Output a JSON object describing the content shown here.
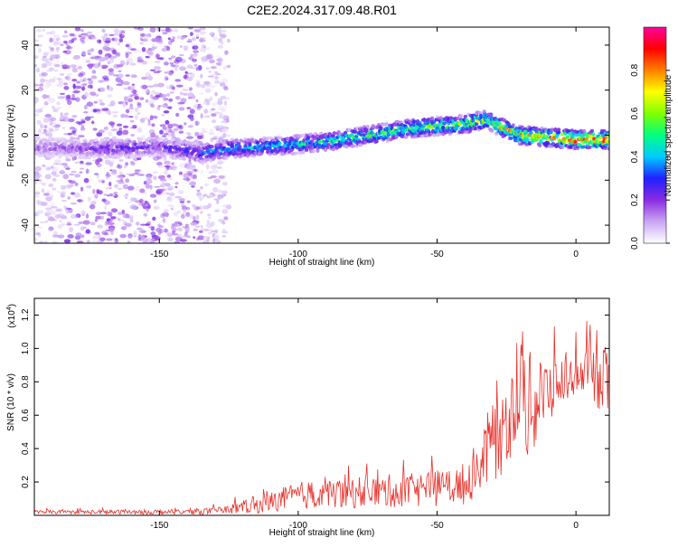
{
  "figure_title": "C2E2.2024.317.09.48.R01",
  "chart_data": [
    {
      "type": "heatmap",
      "xlabel": "Height of straight line (km)",
      "ylabel": "Frequency (Hz)",
      "xlim": [
        -195,
        12
      ],
      "ylim": [
        -48,
        48
      ],
      "x_ticks": [
        -150,
        -100,
        -50,
        0
      ],
      "y_ticks": [
        40,
        20,
        0,
        -20,
        -40
      ],
      "colorbar": {
        "label": "Normalized spectral amplitude",
        "range": [
          0.0,
          1.0
        ],
        "ticks": [
          "0.0",
          "0.2",
          "0.4",
          "0.6",
          "0.8"
        ],
        "tick_values": [
          0.0,
          0.2,
          0.4,
          0.6,
          0.8
        ],
        "colors": [
          "#ffffff",
          "#c9a6f5",
          "#8a2be2",
          "#2020ff",
          "#00ccff",
          "#00ff80",
          "#80ff00",
          "#ffff00",
          "#ff8000",
          "#ff0000",
          "#ff00a0"
        ]
      },
      "ridge": {
        "x": [
          -195,
          -180,
          -165,
          -150,
          -135,
          -125,
          -110,
          -100,
          -90,
          -80,
          -70,
          -60,
          -50,
          -40,
          -32,
          -28,
          -20,
          -10,
          0,
          10
        ],
        "freq": [
          -5,
          -6,
          -6,
          -5,
          -8,
          -6,
          -5,
          -4,
          -3,
          -1,
          1,
          3,
          4,
          5,
          7,
          4,
          0,
          -1,
          -2,
          -2
        ],
        "peak_amplitude": [
          0.2,
          0.2,
          0.3,
          0.25,
          0.4,
          0.45,
          0.5,
          0.5,
          0.55,
          0.6,
          0.6,
          0.65,
          0.65,
          0.7,
          0.7,
          0.75,
          0.85,
          0.9,
          1.0,
          0.95
        ]
      },
      "noise_region_x": [
        -195,
        -125
      ],
      "noise_dense_x": [
        -185,
        -135
      ]
    },
    {
      "type": "line",
      "xlabel": "Height of straight line (km)",
      "ylabel": "SNR (10 * v/v)",
      "scale_label": "(x10",
      "scale_exponent": "4",
      "series_color": "#e8302a",
      "xlim": [
        -195,
        12
      ],
      "ylim": [
        0,
        1.3
      ],
      "x_ticks": [
        -150,
        -100,
        -50,
        0
      ],
      "y_ticks": [
        0.2,
        0.4,
        0.6,
        0.8,
        1.0,
        1.2
      ],
      "y_tick_labels": [
        "0.2",
        "0.4",
        "0.6",
        "0.8",
        "1.0",
        "1.2"
      ],
      "envelope": {
        "x": [
          -195,
          -150,
          -130,
          -115,
          -100,
          -80,
          -60,
          -40,
          -35,
          -30,
          -25,
          -20,
          -15,
          -10,
          -5,
          0,
          5,
          10,
          12
        ],
        "base": [
          0.02,
          0.02,
          0.025,
          0.06,
          0.12,
          0.14,
          0.15,
          0.18,
          0.3,
          0.45,
          0.55,
          0.7,
          0.65,
          0.75,
          0.8,
          0.85,
          0.85,
          0.8,
          0.8
        ],
        "spread": [
          0.01,
          0.015,
          0.02,
          0.05,
          0.08,
          0.1,
          0.1,
          0.12,
          0.18,
          0.25,
          0.3,
          0.35,
          0.3,
          0.2,
          0.15,
          0.12,
          0.15,
          0.2,
          0.25
        ]
      }
    }
  ]
}
